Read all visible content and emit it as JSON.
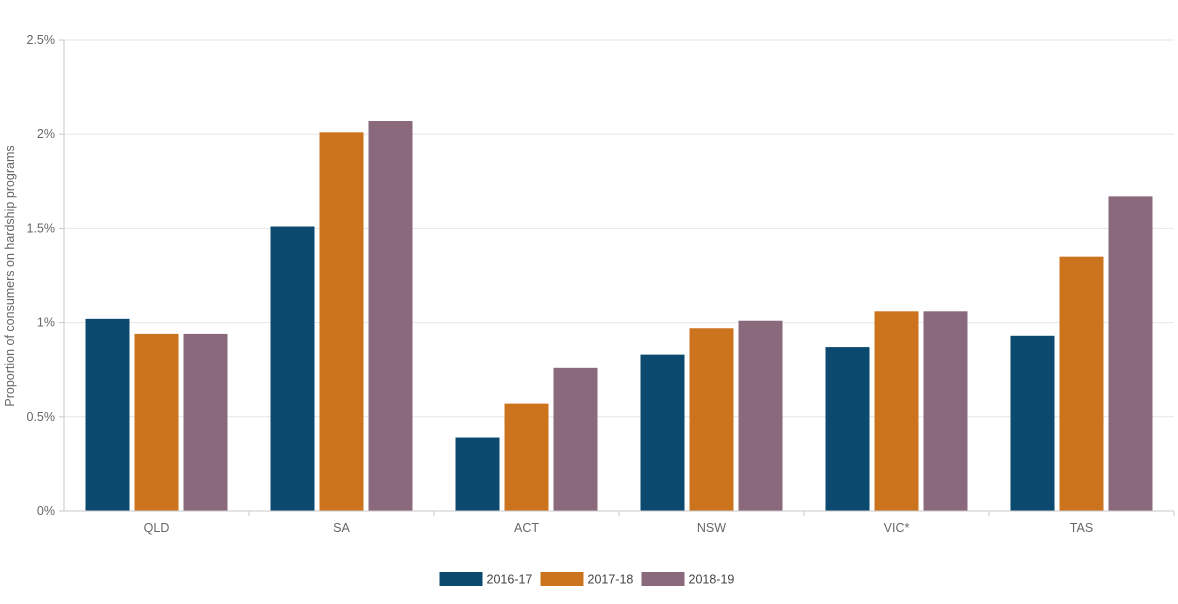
{
  "chart_data": {
    "type": "bar",
    "title": "",
    "xlabel": "",
    "ylabel": "Proportion of consumers on hardship programs",
    "categories": [
      "QLD",
      "SA",
      "ACT",
      "NSW",
      "VIC*",
      "TAS"
    ],
    "ylim": [
      0,
      2.5
    ],
    "yticks": [
      0,
      0.5,
      1,
      1.5,
      2,
      2.5
    ],
    "ytick_labels": [
      "0%",
      "0.5%",
      "1%",
      "1.5%",
      "2%",
      "2.5%"
    ],
    "grid": true,
    "legend_position": "bottom-center",
    "series": [
      {
        "name": "2016-17",
        "color": "#0b4a6e",
        "values": [
          1.02,
          1.51,
          0.39,
          0.83,
          0.87,
          0.93
        ]
      },
      {
        "name": "2017-18",
        "color": "#cc731e",
        "values": [
          0.94,
          2.01,
          0.57,
          0.97,
          1.06,
          1.35
        ]
      },
      {
        "name": "2018-19",
        "color": "#8a697c",
        "values": [
          0.94,
          2.07,
          0.76,
          1.01,
          1.06,
          1.67
        ]
      }
    ]
  }
}
